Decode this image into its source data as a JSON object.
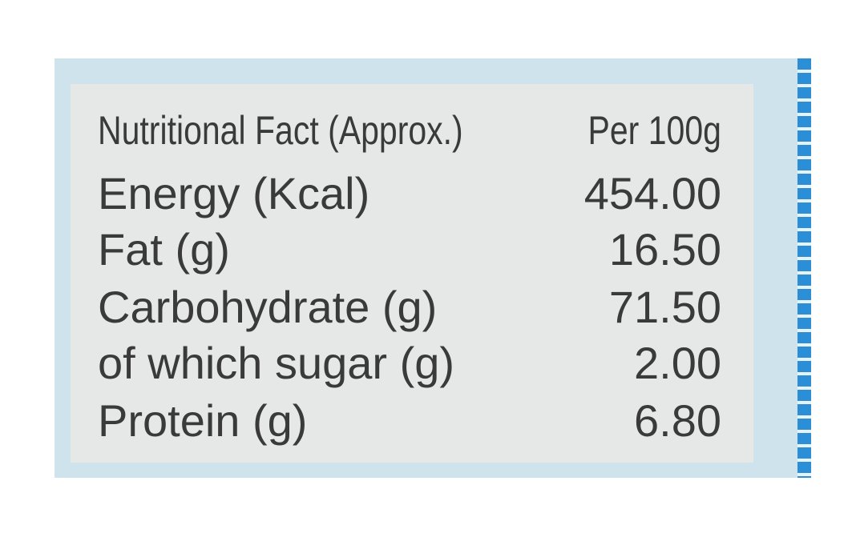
{
  "table": {
    "header": [
      "Nutritional Fact (Approx.)",
      "Per 100g"
    ],
    "rows": [
      [
        "Energy (Kcal)",
        "454.00"
      ],
      [
        "Fat (g)",
        "16.50"
      ],
      [
        "Carbohydrate (g)",
        "71.50"
      ],
      [
        "of which sugar (g)",
        "2.00"
      ],
      [
        "Protein (g)",
        "6.80"
      ]
    ]
  }
}
